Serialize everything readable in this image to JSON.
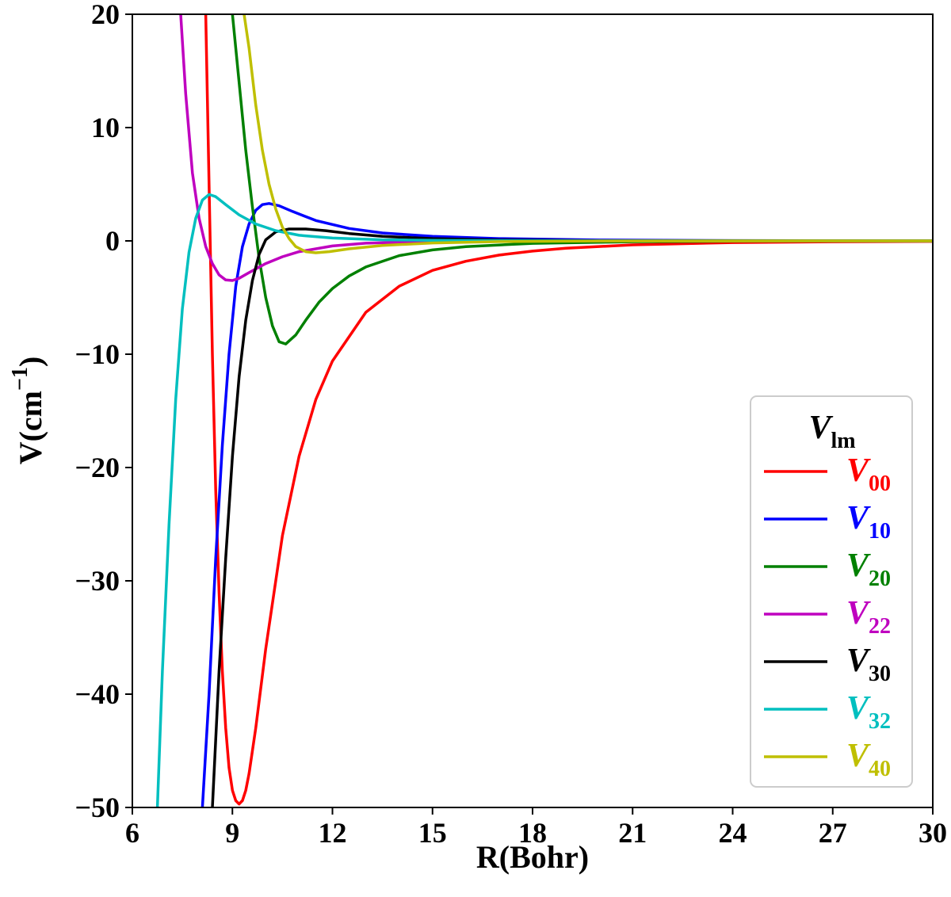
{
  "chart_data": {
    "type": "line",
    "xlabel": "R(Bohr)",
    "ylabel": "V(cm",
    "ylabel_sup": "−1",
    "ylabel_close": ")",
    "xlim": [
      6,
      30
    ],
    "ylim": [
      -50,
      20
    ],
    "xticks": [
      6,
      9,
      12,
      15,
      18,
      21,
      24,
      27,
      30
    ],
    "yticks": [
      -50,
      -40,
      -30,
      -20,
      -10,
      0,
      10,
      20
    ],
    "grid": false,
    "legend": {
      "title": "V",
      "title_sub": "lm",
      "placement": "lower-right"
    },
    "series": [
      {
        "name": "V00",
        "label_main": "V",
        "label_sub": "00",
        "color": "#ff0000",
        "points": [
          [
            8.2,
            20
          ],
          [
            8.3,
            5
          ],
          [
            8.4,
            -10
          ],
          [
            8.5,
            -22
          ],
          [
            8.6,
            -31
          ],
          [
            8.7,
            -38
          ],
          [
            8.8,
            -43
          ],
          [
            8.9,
            -46.5
          ],
          [
            9.0,
            -48.5
          ],
          [
            9.1,
            -49.4
          ],
          [
            9.2,
            -49.7
          ],
          [
            9.3,
            -49.4
          ],
          [
            9.4,
            -48.5
          ],
          [
            9.5,
            -47
          ],
          [
            9.7,
            -43
          ],
          [
            10.0,
            -36
          ],
          [
            10.5,
            -26
          ],
          [
            11.0,
            -19
          ],
          [
            11.5,
            -14
          ],
          [
            12.0,
            -10.6
          ],
          [
            13.0,
            -6.3
          ],
          [
            14.0,
            -4.0
          ],
          [
            15.0,
            -2.6
          ],
          [
            16.0,
            -1.8
          ],
          [
            17.0,
            -1.25
          ],
          [
            18.0,
            -0.9
          ],
          [
            19.0,
            -0.65
          ],
          [
            21.0,
            -0.35
          ],
          [
            24.0,
            -0.15
          ],
          [
            27.0,
            -0.08
          ],
          [
            30.0,
            -0.04
          ]
        ]
      },
      {
        "name": "V10",
        "label_main": "V",
        "label_sub": "10",
        "color": "#0000ff",
        "points": [
          [
            8.1,
            -50
          ],
          [
            8.3,
            -40
          ],
          [
            8.5,
            -28
          ],
          [
            8.7,
            -18
          ],
          [
            8.9,
            -10
          ],
          [
            9.1,
            -4
          ],
          [
            9.3,
            -0.5
          ],
          [
            9.5,
            1.5
          ],
          [
            9.7,
            2.7
          ],
          [
            9.9,
            3.2
          ],
          [
            10.1,
            3.3
          ],
          [
            10.4,
            3.1
          ],
          [
            10.8,
            2.6
          ],
          [
            11.5,
            1.8
          ],
          [
            12.5,
            1.1
          ],
          [
            13.5,
            0.7
          ],
          [
            15.0,
            0.4
          ],
          [
            17.0,
            0.2
          ],
          [
            20.0,
            0.08
          ],
          [
            24.0,
            0.03
          ],
          [
            30.0,
            0.01
          ]
        ]
      },
      {
        "name": "V20",
        "label_main": "V",
        "label_sub": "20",
        "color": "#008000",
        "points": [
          [
            9.0,
            20
          ],
          [
            9.2,
            14
          ],
          [
            9.4,
            8
          ],
          [
            9.6,
            3
          ],
          [
            9.8,
            -1.5
          ],
          [
            10.0,
            -5
          ],
          [
            10.2,
            -7.5
          ],
          [
            10.4,
            -8.9
          ],
          [
            10.6,
            -9.1
          ],
          [
            10.9,
            -8.3
          ],
          [
            11.2,
            -7.0
          ],
          [
            11.6,
            -5.4
          ],
          [
            12.0,
            -4.2
          ],
          [
            12.5,
            -3.1
          ],
          [
            13.0,
            -2.3
          ],
          [
            14.0,
            -1.3
          ],
          [
            15.0,
            -0.8
          ],
          [
            16.0,
            -0.5
          ],
          [
            18.0,
            -0.22
          ],
          [
            21.0,
            -0.08
          ],
          [
            24.0,
            -0.03
          ],
          [
            30.0,
            0.0
          ]
        ]
      },
      {
        "name": "V22",
        "label_main": "V",
        "label_sub": "22",
        "color": "#bf00bf",
        "points": [
          [
            7.45,
            20
          ],
          [
            7.6,
            13
          ],
          [
            7.8,
            6
          ],
          [
            8.0,
            2
          ],
          [
            8.2,
            -0.5
          ],
          [
            8.4,
            -2.0
          ],
          [
            8.6,
            -3.0
          ],
          [
            8.8,
            -3.45
          ],
          [
            9.0,
            -3.5
          ],
          [
            9.2,
            -3.3
          ],
          [
            9.5,
            -2.8
          ],
          [
            10.0,
            -2.0
          ],
          [
            10.5,
            -1.4
          ],
          [
            11.0,
            -0.95
          ],
          [
            12.0,
            -0.45
          ],
          [
            13.0,
            -0.2
          ],
          [
            15.0,
            -0.05
          ],
          [
            18.0,
            -0.01
          ],
          [
            30.0,
            0.0
          ]
        ]
      },
      {
        "name": "V30",
        "label_main": "V",
        "label_sub": "30",
        "color": "#000000",
        "points": [
          [
            8.4,
            -50
          ],
          [
            8.6,
            -38
          ],
          [
            8.8,
            -28
          ],
          [
            9.0,
            -19
          ],
          [
            9.2,
            -12
          ],
          [
            9.4,
            -7
          ],
          [
            9.6,
            -3.5
          ],
          [
            9.8,
            -1.2
          ],
          [
            10.0,
            0.1
          ],
          [
            10.3,
            0.8
          ],
          [
            10.7,
            1.05
          ],
          [
            11.2,
            1.05
          ],
          [
            11.8,
            0.9
          ],
          [
            12.5,
            0.65
          ],
          [
            13.5,
            0.4
          ],
          [
            15.0,
            0.2
          ],
          [
            17.0,
            0.08
          ],
          [
            20.0,
            0.02
          ],
          [
            30.0,
            0.0
          ]
        ]
      },
      {
        "name": "V32",
        "label_main": "V",
        "label_sub": "32",
        "color": "#00bfbf",
        "points": [
          [
            6.75,
            -50
          ],
          [
            6.9,
            -38
          ],
          [
            7.1,
            -25
          ],
          [
            7.3,
            -14
          ],
          [
            7.5,
            -6
          ],
          [
            7.7,
            -1
          ],
          [
            7.9,
            2.0
          ],
          [
            8.1,
            3.6
          ],
          [
            8.3,
            4.1
          ],
          [
            8.5,
            3.9
          ],
          [
            8.8,
            3.2
          ],
          [
            9.2,
            2.3
          ],
          [
            9.7,
            1.5
          ],
          [
            10.3,
            0.9
          ],
          [
            11.0,
            0.5
          ],
          [
            12.0,
            0.25
          ],
          [
            13.5,
            0.1
          ],
          [
            15.0,
            0.05
          ],
          [
            18.0,
            0.01
          ],
          [
            30.0,
            0.0
          ]
        ]
      },
      {
        "name": "V40",
        "label_main": "V",
        "label_sub": "40",
        "color": "#bfbf00",
        "points": [
          [
            9.35,
            20
          ],
          [
            9.5,
            17
          ],
          [
            9.7,
            12
          ],
          [
            9.9,
            8
          ],
          [
            10.1,
            5
          ],
          [
            10.3,
            2.8
          ],
          [
            10.5,
            1.2
          ],
          [
            10.7,
            0.2
          ],
          [
            10.9,
            -0.5
          ],
          [
            11.2,
            -0.95
          ],
          [
            11.5,
            -1.05
          ],
          [
            11.9,
            -0.95
          ],
          [
            12.5,
            -0.7
          ],
          [
            13.5,
            -0.4
          ],
          [
            15.0,
            -0.18
          ],
          [
            17.0,
            -0.06
          ],
          [
            20.0,
            -0.01
          ],
          [
            30.0,
            0.0
          ]
        ]
      }
    ]
  }
}
